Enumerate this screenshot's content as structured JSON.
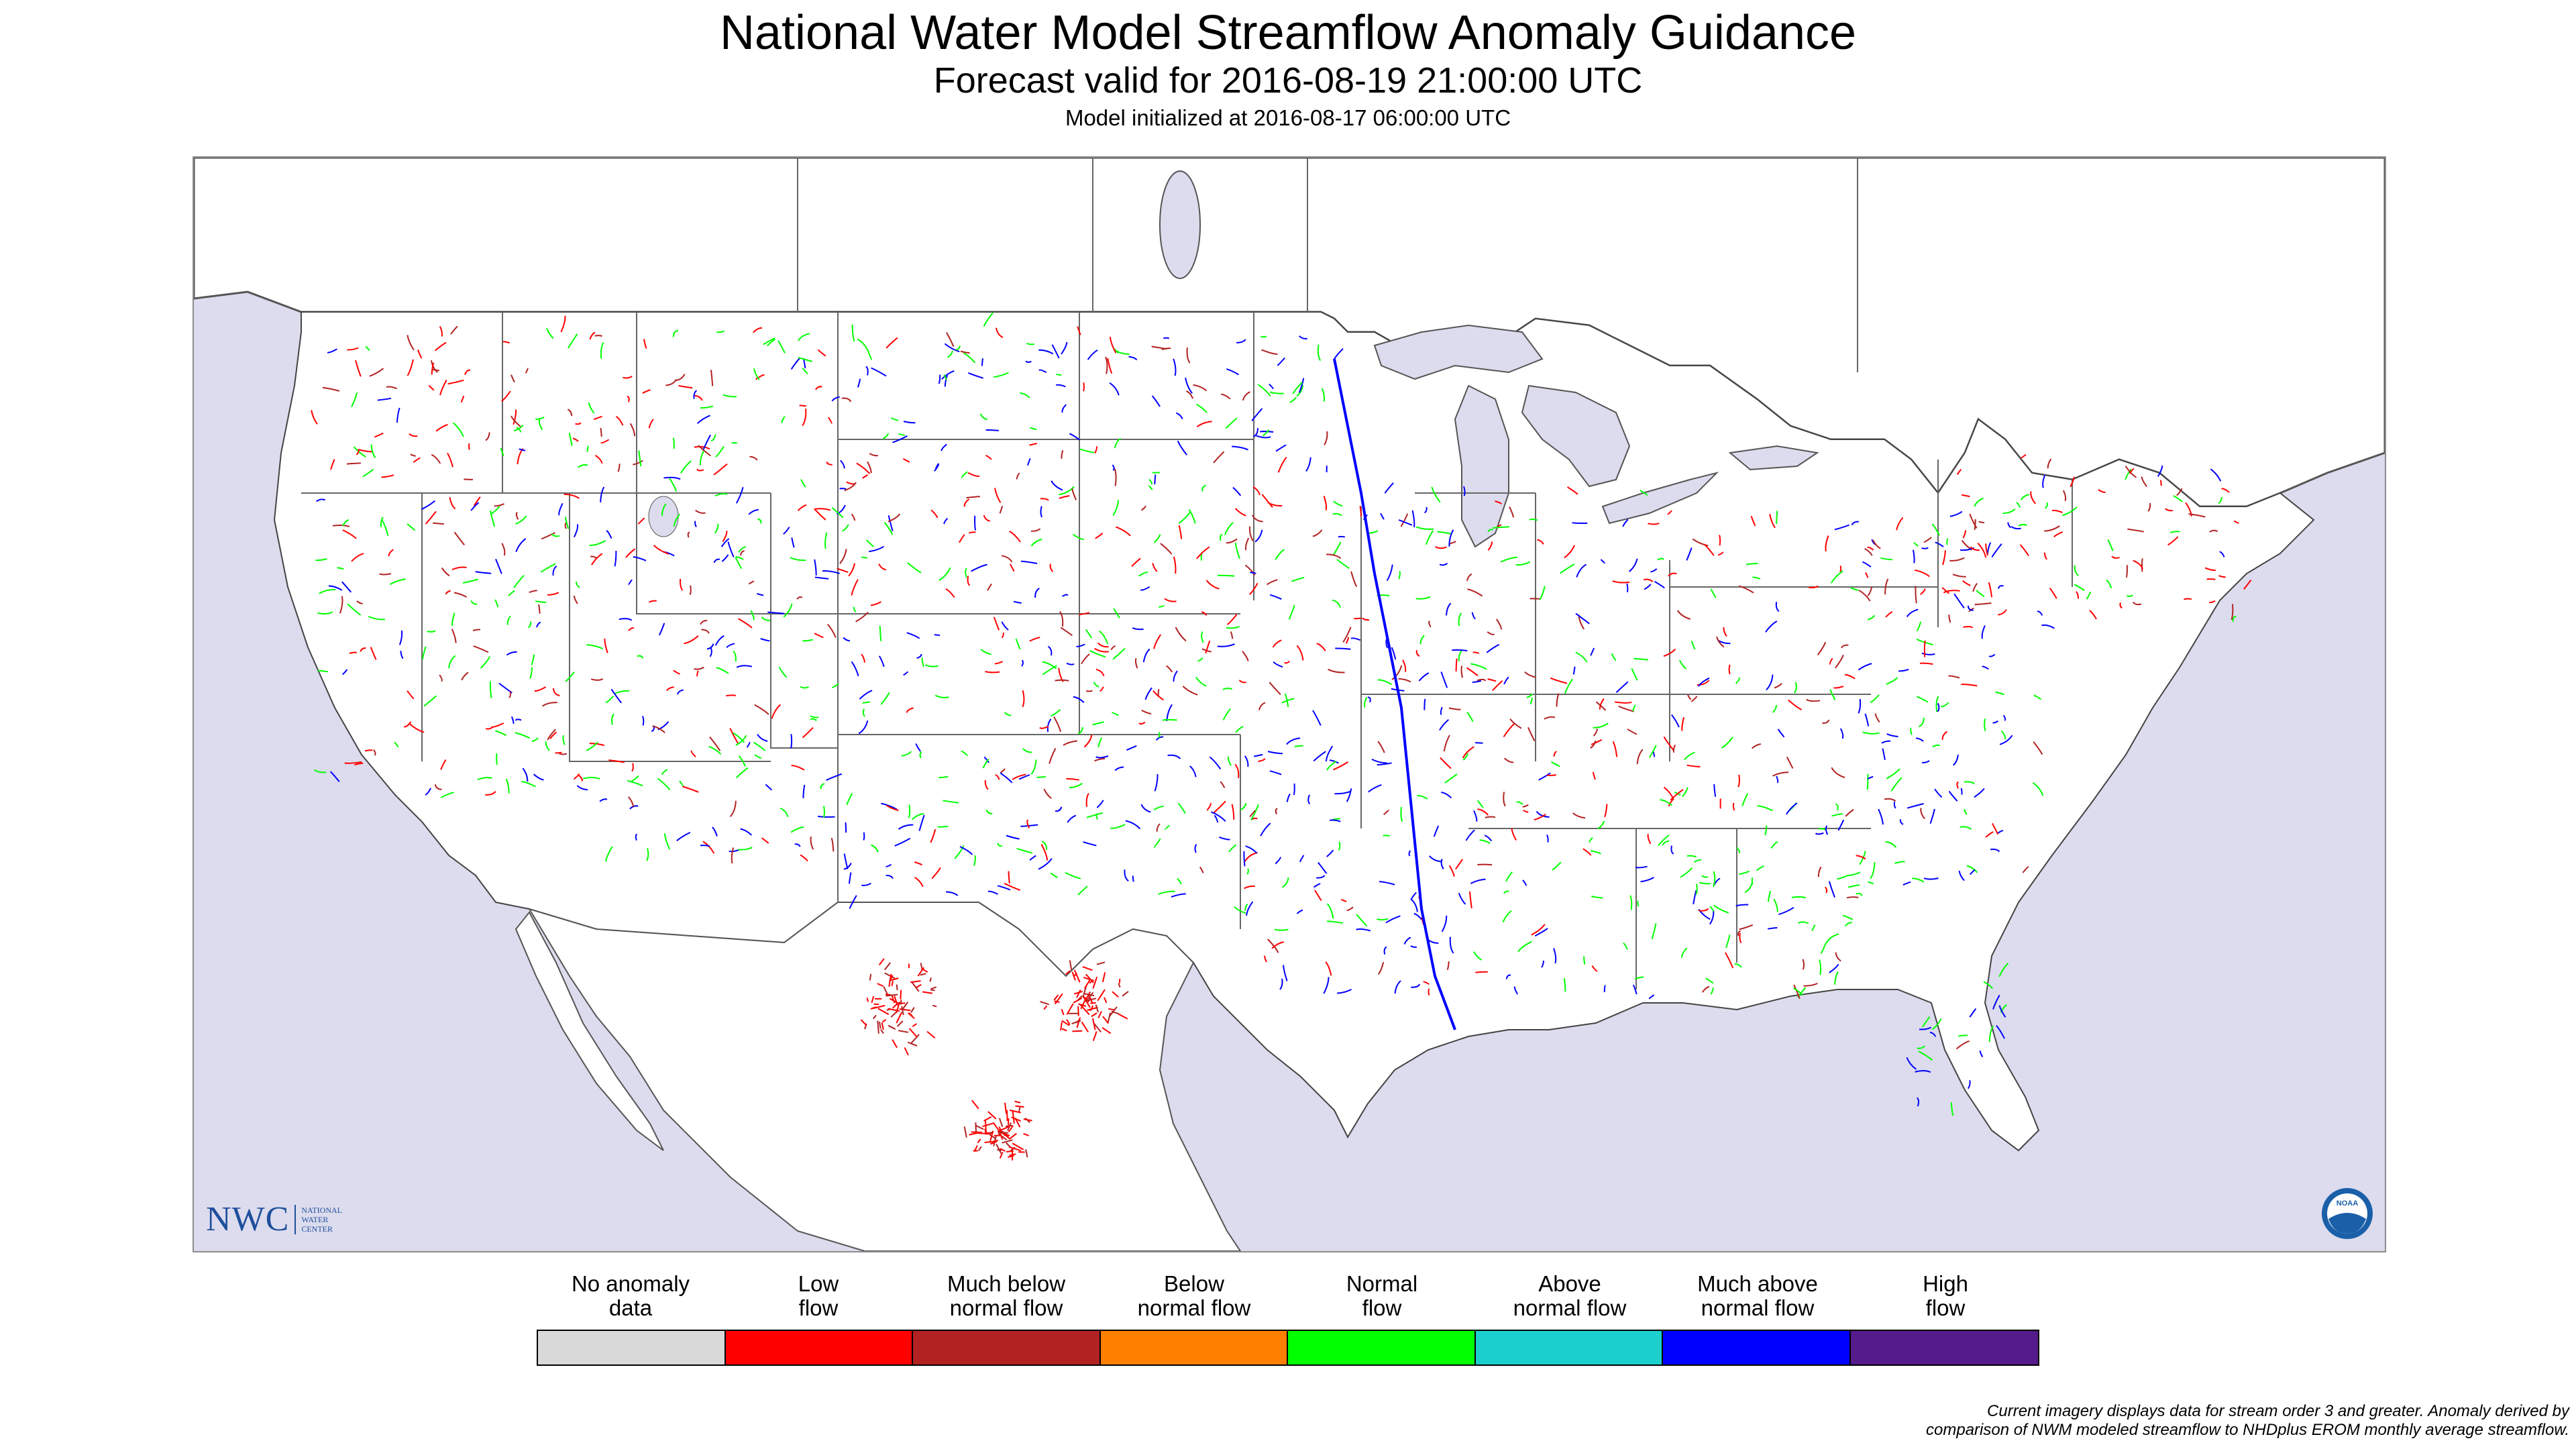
{
  "header": {
    "title": "National Water Model Streamflow Anomaly Guidance",
    "forecast_line": "Forecast valid for 2016-08-19 21:00:00 UTC",
    "init_line": "Model initialized at 2016-08-17 06:00:00 UTC"
  },
  "map": {
    "region": "Contiguous United States",
    "ocean_color": "#dcdcee",
    "land_color": "#ffffff",
    "border_color": "#555555"
  },
  "logos": {
    "nwc_abbrev": "NWC",
    "nwc_full_line1": "NATIONAL",
    "nwc_full_line2": "WATER",
    "nwc_full_line3": "CENTER",
    "noaa_text": "NOAA"
  },
  "legend": {
    "items": [
      {
        "label": "No anomaly\ndata",
        "color": "#d9d9d9"
      },
      {
        "label": "Low\nflow",
        "color": "#ff0000"
      },
      {
        "label": "Much below\nnormal flow",
        "color": "#b22222"
      },
      {
        "label": "Below\nnormal flow",
        "color": "#ff7f00"
      },
      {
        "label": "Normal\nflow",
        "color": "#00ff00"
      },
      {
        "label": "Above\nnormal flow",
        "color": "#1ccfcf"
      },
      {
        "label": "Much above\nnormal flow",
        "color": "#0000ff"
      },
      {
        "label": "High\nflow",
        "color": "#551a8b"
      }
    ]
  },
  "footnote": {
    "line1": "Current imagery displays data for stream order 3 and greater. Anomaly derived by",
    "line2": "comparison of NWM modeled streamflow to NHDplus EROM monthly average streamflow."
  }
}
